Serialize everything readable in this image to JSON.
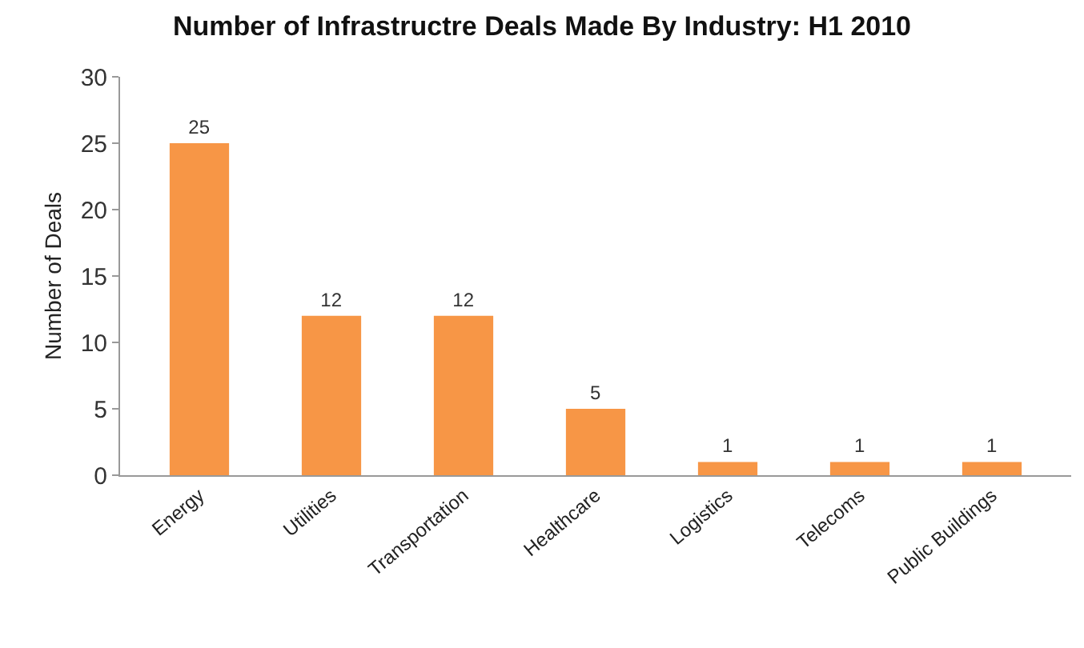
{
  "chart_data": {
    "type": "bar",
    "title": "Number of Infrastructre Deals Made By Industry: H1 2010",
    "ylabel": "Number of Deals",
    "categories": [
      "Energy",
      "Utilities",
      "Transportation",
      "Healthcare",
      "Logistics",
      "Telecoms",
      "Public Buildings"
    ],
    "values": [
      25,
      12,
      12,
      5,
      1,
      1,
      1
    ],
    "color": "#f79646",
    "ylim": [
      0,
      30
    ],
    "yticks": [
      0,
      5,
      10,
      15,
      20,
      25,
      30
    ],
    "grid": false,
    "data_labels": true
  }
}
